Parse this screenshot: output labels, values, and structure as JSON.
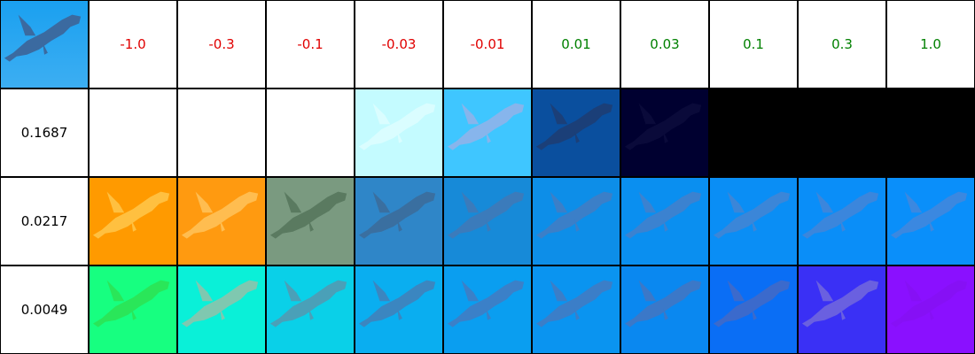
{
  "header": {
    "values": [
      "-1.0",
      "-0.3",
      "-0.1",
      "-0.03",
      "-0.01",
      "0.01",
      "0.03",
      "0.1",
      "0.3",
      "1.0"
    ],
    "negative_color": "#e00000",
    "positive_color": "#008000"
  },
  "rows": [
    {
      "label": "0.1687",
      "tiles": [
        {
          "bg": "#ffffff",
          "shark": "#ffffff",
          "opacity": 0
        },
        {
          "bg": "#ffffff",
          "shark": "#ffffff",
          "opacity": 0
        },
        {
          "bg": "#ffffff",
          "shark": "#ffffff",
          "opacity": 0
        },
        {
          "bg": "#c4fbff",
          "shark": "#eaffff",
          "opacity": 0.6
        },
        {
          "bg": "#3fc6ff",
          "shark": "#8fb4ea",
          "opacity": 0.9
        },
        {
          "bg": "#0a4f9e",
          "shark": "#1b3f78",
          "opacity": 1
        },
        {
          "bg": "#000030",
          "shark": "#0a0a3a",
          "opacity": 1
        },
        {
          "bg": "#000000",
          "shark": "#000000",
          "opacity": 0
        },
        {
          "bg": "#000000",
          "shark": "#000000",
          "opacity": 0
        },
        {
          "bg": "#000000",
          "shark": "#000000",
          "opacity": 0
        }
      ]
    },
    {
      "label": "0.0217",
      "tiles": [
        {
          "bg": "#ff9a00",
          "shark": "#ffc040",
          "opacity": 1
        },
        {
          "bg": "#ff9a10",
          "shark": "#ffbd50",
          "opacity": 1
        },
        {
          "bg": "#7a9a80",
          "shark": "#5a7a60",
          "opacity": 1
        },
        {
          "bg": "#2f86c8",
          "shark": "#3a6fa0",
          "opacity": 1
        },
        {
          "bg": "#178ad8",
          "shark": "#3b7bbb",
          "opacity": 1
        },
        {
          "bg": "#0d8ee8",
          "shark": "#3b7fc8",
          "opacity": 1
        },
        {
          "bg": "#0a8ff0",
          "shark": "#3b82d0",
          "opacity": 1
        },
        {
          "bg": "#0a8ef5",
          "shark": "#3b86d8",
          "opacity": 1
        },
        {
          "bg": "#0a8ef8",
          "shark": "#3b86dc",
          "opacity": 1
        },
        {
          "bg": "#0a8ffa",
          "shark": "#3b88e0",
          "opacity": 1
        }
      ]
    },
    {
      "label": "0.0049",
      "tiles": [
        {
          "bg": "#17ff80",
          "shark": "#2fe050",
          "opacity": 0.8
        },
        {
          "bg": "#0af0d8",
          "shark": "#7fc8b0",
          "opacity": 1
        },
        {
          "bg": "#0ad0e8",
          "shark": "#4aa0b8",
          "opacity": 1
        },
        {
          "bg": "#0aaef0",
          "shark": "#3b86c0",
          "opacity": 1
        },
        {
          "bg": "#0a9ef0",
          "shark": "#3b80c8",
          "opacity": 1
        },
        {
          "bg": "#0a94f0",
          "shark": "#3b7ec8",
          "opacity": 1
        },
        {
          "bg": "#0a88f0",
          "shark": "#3b78c8",
          "opacity": 1
        },
        {
          "bg": "#0a6ef5",
          "shark": "#3b6acc",
          "opacity": 1
        },
        {
          "bg": "#3a30f5",
          "shark": "#6a60e0",
          "opacity": 1
        },
        {
          "bg": "#8a10ff",
          "shark": "#8010e0",
          "opacity": 0.3
        }
      ]
    }
  ],
  "corner_tile": {
    "bg": "#1aa0f0",
    "shark": "#3b6aa0",
    "opacity": 1
  }
}
